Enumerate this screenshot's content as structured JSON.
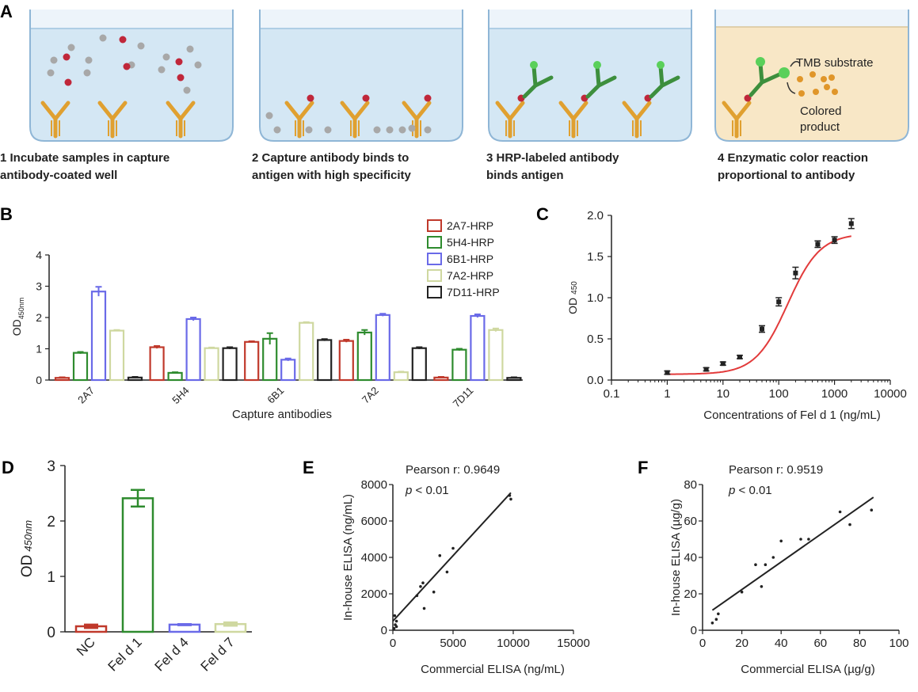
{
  "panels": {
    "A": "A",
    "B": "B",
    "C": "C",
    "D": "D",
    "E": "E",
    "F": "F"
  },
  "schematic": {
    "steps": [
      {
        "line1": "1 Incubate samples in capture",
        "line2": "antibody-coated well"
      },
      {
        "line1": "2 Capture antibody binds to",
        "line2": "antigen with high specificity"
      },
      {
        "line1": "3 HRP-labeled antibody",
        "line2": "binds antigen"
      },
      {
        "line1": "4 Enzymatic color reaction",
        "line2": "proportional to antibody"
      }
    ],
    "tmb_label": "TMB substrate",
    "product_line1": "Colored",
    "product_line2": "product"
  },
  "colors": {
    "red": "#c0392b",
    "green": "#2e8b2e",
    "blue": "#6a6ae8",
    "khaki": "#cfd8a0",
    "black": "#222222",
    "fit": "#e23b3b",
    "antibody": "#e0a030"
  },
  "chart_data": [
    {
      "panel": "B",
      "type": "bar",
      "categories": [
        "2A7",
        "5H4",
        "6B1",
        "7A2",
        "7D11"
      ],
      "xlabel": "Capture antibodies",
      "ylabel": "OD",
      "ylabel_sub": "450nm",
      "ylim": [
        0,
        4
      ],
      "yticks": [
        "0",
        "1",
        "2",
        "3",
        "4"
      ],
      "series": [
        {
          "name": "2A7-HRP",
          "color": "#c0392b",
          "values": [
            0.07,
            1.05,
            1.22,
            1.25,
            0.08
          ],
          "err": [
            0.02,
            0.04,
            0.02,
            0.04,
            0.02
          ]
        },
        {
          "name": "5H4-HRP",
          "color": "#2e8b2e",
          "values": [
            0.87,
            0.23,
            1.32,
            1.52,
            0.97
          ],
          "err": [
            0.03,
            0.02,
            0.18,
            0.08,
            0.03
          ]
        },
        {
          "name": "6B1-HRP",
          "color": "#6a6ae8",
          "values": [
            2.83,
            1.95,
            0.65,
            2.08,
            2.05
          ],
          "err": [
            0.15,
            0.05,
            0.04,
            0.04,
            0.05
          ]
        },
        {
          "name": "7A2-HRP",
          "color": "#cfd8a0",
          "values": [
            1.58,
            1.02,
            1.83,
            0.25,
            1.6
          ],
          "err": [
            0.02,
            0.02,
            0.02,
            0.02,
            0.05
          ]
        },
        {
          "name": "7D11-HRP",
          "color": "#222222",
          "values": [
            0.08,
            1.02,
            1.28,
            1.02,
            0.07
          ],
          "err": [
            0.02,
            0.03,
            0.03,
            0.03,
            0.02
          ]
        }
      ],
      "legend": "top-right"
    },
    {
      "panel": "C",
      "type": "scatter",
      "xscale": "log",
      "xlim": [
        0.1,
        10000
      ],
      "ylim": [
        0,
        2.0
      ],
      "xticks": [
        "0.1",
        "1",
        "10",
        "100",
        "1000",
        "10000"
      ],
      "yticks": [
        "0.0",
        "0.5",
        "1.0",
        "1.5",
        "2.0"
      ],
      "xlabel": "Concentrations of Fel d 1 (ng/mL)",
      "ylabel": "OD",
      "ylabel_sub": "450",
      "points": [
        {
          "x": 1,
          "y": 0.09,
          "err": 0.02
        },
        {
          "x": 5,
          "y": 0.13,
          "err": 0.02
        },
        {
          "x": 10,
          "y": 0.2,
          "err": 0.02
        },
        {
          "x": 20,
          "y": 0.28,
          "err": 0.02
        },
        {
          "x": 50,
          "y": 0.62,
          "err": 0.04
        },
        {
          "x": 100,
          "y": 0.95,
          "err": 0.05
        },
        {
          "x": 200,
          "y": 1.3,
          "err": 0.07
        },
        {
          "x": 500,
          "y": 1.65,
          "err": 0.04
        },
        {
          "x": 1000,
          "y": 1.7,
          "err": 0.04
        },
        {
          "x": 2000,
          "y": 1.9,
          "err": 0.06
        }
      ],
      "fit": {
        "bottom": 0.07,
        "top": 1.78,
        "ec50": 145,
        "hill": 1.5,
        "xmin": 1,
        "xmax": 2000
      }
    },
    {
      "panel": "D",
      "type": "bar",
      "categories": [
        "NC",
        "Fel d 1",
        "Fel d 4",
        "Fel d 7"
      ],
      "colors": [
        "#c0392b",
        "#2e8b2e",
        "#6a6ae8",
        "#cfd8a0"
      ],
      "values": [
        0.1,
        2.41,
        0.13,
        0.14
      ],
      "err": [
        0.03,
        0.15,
        0.01,
        0.03
      ],
      "ylim": [
        0,
        3
      ],
      "yticks": [
        "0",
        "1",
        "2",
        "3"
      ],
      "ylabel": "OD",
      "ylabel_sub": "450nm"
    },
    {
      "panel": "E",
      "type": "scatter",
      "xlim": [
        0,
        15000
      ],
      "ylim": [
        0,
        8000
      ],
      "xticks": [
        "0",
        "5000",
        "10000",
        "15000"
      ],
      "yticks": [
        "0",
        "2000",
        "4000",
        "6000",
        "8000"
      ],
      "xlabel": "Commercial ELISA (ng/mL)",
      "ylabel": "In-house ELISA (ng/mL)",
      "annotation": "Pearson r: 0.9649",
      "pvalue_p": "p",
      "pvalue_rest": " < 0.01",
      "points": [
        [
          100,
          100
        ],
        [
          200,
          300
        ],
        [
          300,
          500
        ],
        [
          150,
          800
        ],
        [
          2000,
          1900
        ],
        [
          2300,
          2400
        ],
        [
          2500,
          2600
        ],
        [
          2600,
          1200
        ],
        [
          3400,
          2100
        ],
        [
          3900,
          4100
        ],
        [
          4500,
          3200
        ],
        [
          5000,
          4500
        ],
        [
          9800,
          7200
        ],
        [
          9700,
          7400
        ],
        [
          300,
          200
        ]
      ],
      "fit": [
        [
          0,
          500
        ],
        [
          9800,
          7550
        ]
      ]
    },
    {
      "panel": "F",
      "type": "scatter",
      "xlim": [
        0,
        100
      ],
      "ylim": [
        0,
        80
      ],
      "xticks": [
        "0",
        "20",
        "40",
        "60",
        "80",
        "100"
      ],
      "yticks": [
        "0",
        "20",
        "40",
        "60",
        "80"
      ],
      "xlabel": "Commercial ELISA (µg/g)",
      "ylabel": "In-house ELISA (µg/g)",
      "annotation": "Pearson r: 0.9519",
      "pvalue_p": "p",
      "pvalue_rest": " < 0.01",
      "points": [
        [
          5,
          4
        ],
        [
          7,
          6
        ],
        [
          8,
          9
        ],
        [
          20,
          21
        ],
        [
          27,
          36
        ],
        [
          30,
          24
        ],
        [
          32,
          36
        ],
        [
          36,
          40
        ],
        [
          40,
          49
        ],
        [
          50,
          50
        ],
        [
          54,
          50
        ],
        [
          70,
          65
        ],
        [
          75,
          58
        ],
        [
          86,
          66
        ]
      ],
      "fit": [
        [
          5,
          11
        ],
        [
          87,
          73
        ]
      ]
    }
  ]
}
